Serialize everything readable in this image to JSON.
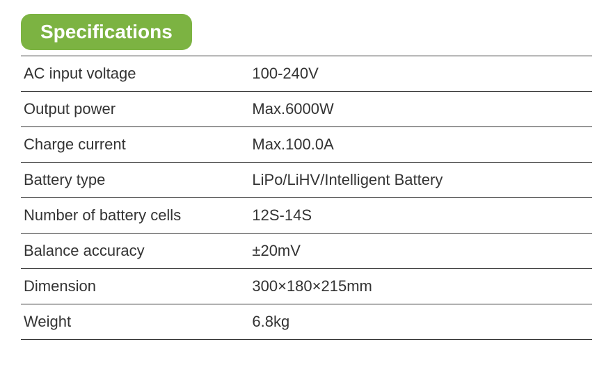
{
  "header": {
    "title": "Specifications"
  },
  "styling": {
    "badge_bg": "#7cb342",
    "badge_text_color": "#ffffff",
    "border_color": "#333333",
    "text_color": "#333333",
    "badge_fontsize": 28,
    "row_fontsize": 22,
    "badge_border_radius": 14,
    "label_col_width_pct": 40,
    "value_col_width_pct": 60
  },
  "specs": {
    "type": "table",
    "rows": [
      {
        "label": "AC input voltage",
        "value": "100-240V"
      },
      {
        "label": "Output power",
        "value": "Max.6000W"
      },
      {
        "label": "Charge current",
        "value": "Max.100.0A"
      },
      {
        "label": "Battery type",
        "value": "LiPo/LiHV/Intelligent Battery"
      },
      {
        "label": "Number of battery cells",
        "value": "12S-14S"
      },
      {
        "label": "Balance accuracy",
        "value": "±20mV"
      },
      {
        "label": "Dimension",
        "value": "300×180×215mm"
      },
      {
        "label": "Weight",
        "value": "6.8kg"
      }
    ]
  }
}
